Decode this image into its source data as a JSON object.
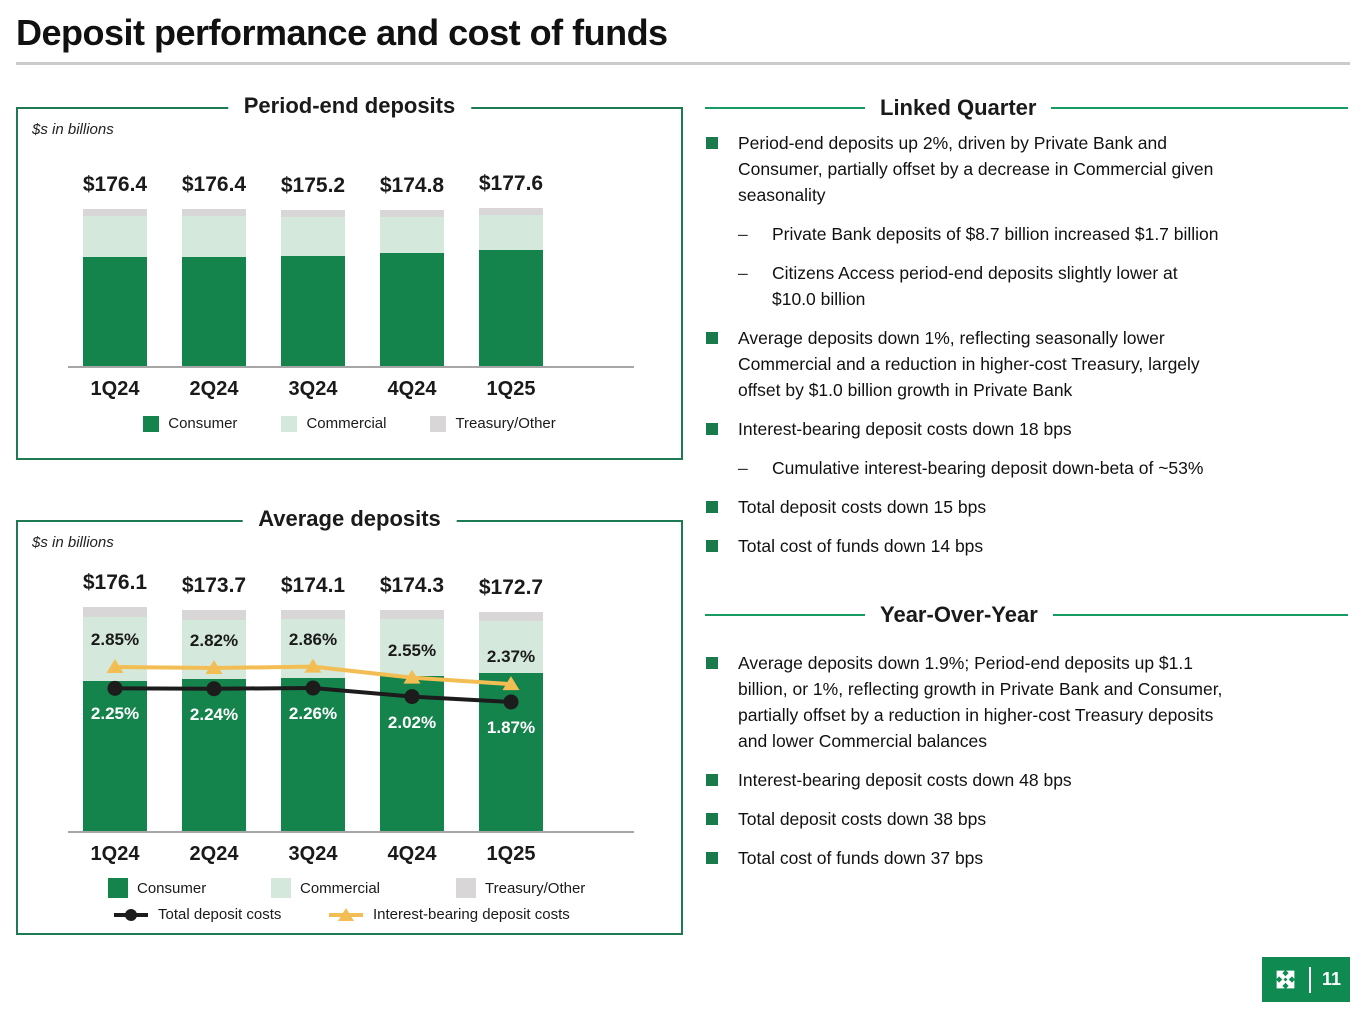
{
  "slide": {
    "title": "Deposit performance and cost of funds"
  },
  "colors": {
    "consumer": "#15834c",
    "commercial": "#d4e8dc",
    "treasury": "#d9d6d8",
    "total_deposit_costs_line": "#1c1c1c",
    "interest_bearing_line": "#f2be54",
    "panel_border": "#1e7a52",
    "header_line": "#169b62",
    "bullet_square": "#1a7a4b",
    "footer_green": "#0f8a50"
  },
  "chart_data": [
    {
      "type": "bar",
      "stacked": true,
      "title": "Period-end deposits",
      "units_note": "$s in billions",
      "categories": [
        "1Q24",
        "2Q24",
        "3Q24",
        "4Q24",
        "1Q25"
      ],
      "totals": [
        176.4,
        176.4,
        175.2,
        174.8,
        177.6
      ],
      "total_labels": [
        "$176.4",
        "$176.4",
        "$175.2",
        "$174.8",
        "$177.6"
      ],
      "series": [
        {
          "name": "Consumer",
          "color": "#15834c",
          "values_estimated": [
            122.5,
            122.5,
            123.5,
            127.3,
            130.2
          ]
        },
        {
          "name": "Commercial",
          "color": "#d4e8dc",
          "values_estimated": [
            45.7,
            45.7,
            43.5,
            40.0,
            39.2
          ]
        },
        {
          "name": "Treasury/Other",
          "color": "#d9d6d8",
          "values_estimated": [
            8.2,
            8.2,
            8.2,
            7.5,
            8.2
          ]
        }
      ],
      "legend_position": "bottom",
      "grid": false
    },
    {
      "type": "bar",
      "stacked": true,
      "with_lines": true,
      "title": "Average deposits",
      "units_note": "$s in billions",
      "categories": [
        "1Q24",
        "2Q24",
        "3Q24",
        "4Q24",
        "1Q25"
      ],
      "totals": [
        176.1,
        173.7,
        174.1,
        174.3,
        172.7
      ],
      "total_labels": [
        "$176.1",
        "$173.7",
        "$174.1",
        "$174.3",
        "$172.7"
      ],
      "series": [
        {
          "name": "Consumer",
          "color": "#15834c",
          "values_estimated": [
            118.3,
            119.8,
            120.4,
            122.0,
            124.0
          ]
        },
        {
          "name": "Commercial",
          "color": "#d4e8dc",
          "values_estimated": [
            50.4,
            46.6,
            46.4,
            45.0,
            41.4
          ]
        },
        {
          "name": "Treasury/Other",
          "color": "#d9d6d8",
          "values_estimated": [
            7.4,
            7.3,
            7.3,
            7.3,
            7.3
          ]
        }
      ],
      "lines": [
        {
          "name": "Interest-bearing deposit costs",
          "marker": "triangle",
          "color": "#f2be54",
          "values_pct": [
            2.85,
            2.82,
            2.86,
            2.55,
            2.37
          ],
          "labels": [
            "2.85%",
            "2.82%",
            "2.86%",
            "2.55%",
            "2.37%"
          ],
          "label_color": "#1a1a1a"
        },
        {
          "name": "Total deposit costs",
          "marker": "circle",
          "color": "#1c1c1c",
          "values_pct": [
            2.25,
            2.24,
            2.26,
            2.02,
            1.87
          ],
          "labels": [
            "2.25%",
            "2.24%",
            "2.26%",
            "2.02%",
            "1.87%"
          ],
          "label_color": "#ffffff"
        }
      ],
      "legend_position": "bottom",
      "grid": false
    }
  ],
  "right": {
    "sections": [
      {
        "title": "Linked Quarter",
        "items": [
          {
            "level": 1,
            "text": "Period-end deposits up 2%, driven by Private Bank and\nConsumer, partially offset by a decrease in Commercial given\nseasonality"
          },
          {
            "level": 2,
            "text": "Private Bank deposits of $8.7 billion increased $1.7 billion"
          },
          {
            "level": 2,
            "text": "Citizens Access period-end deposits slightly lower at\n$10.0 billion"
          },
          {
            "level": 1,
            "text": "Average deposits down 1%, reflecting seasonally lower\nCommercial and a reduction in higher-cost Treasury, largely\noffset by $1.0 billion growth in Private Bank"
          },
          {
            "level": 1,
            "text": "Interest-bearing deposit costs down 18 bps"
          },
          {
            "level": 2,
            "text": "Cumulative interest-bearing deposit down-beta of ~53%"
          },
          {
            "level": 1,
            "text": "Total deposit costs down 15 bps"
          },
          {
            "level": 1,
            "text": "Total cost of funds down 14 bps"
          }
        ]
      },
      {
        "title": "Year-Over-Year",
        "items": [
          {
            "level": 1,
            "text": "Average deposits down 1.9%; Period-end deposits up $1.1\nbillion, or 1%, reflecting growth in Private Bank and Consumer,\npartially offset by a reduction in higher-cost Treasury deposits\nand lower Commercial balances"
          },
          {
            "level": 1,
            "text": "Interest-bearing deposit costs down 48 bps"
          },
          {
            "level": 1,
            "text": "Total deposit costs down 38 bps"
          },
          {
            "level": 1,
            "text": "Total cost of funds down 37 bps"
          }
        ]
      }
    ]
  },
  "footer": {
    "page_number": "11",
    "logo": "citizens-pinwheel-logo"
  }
}
